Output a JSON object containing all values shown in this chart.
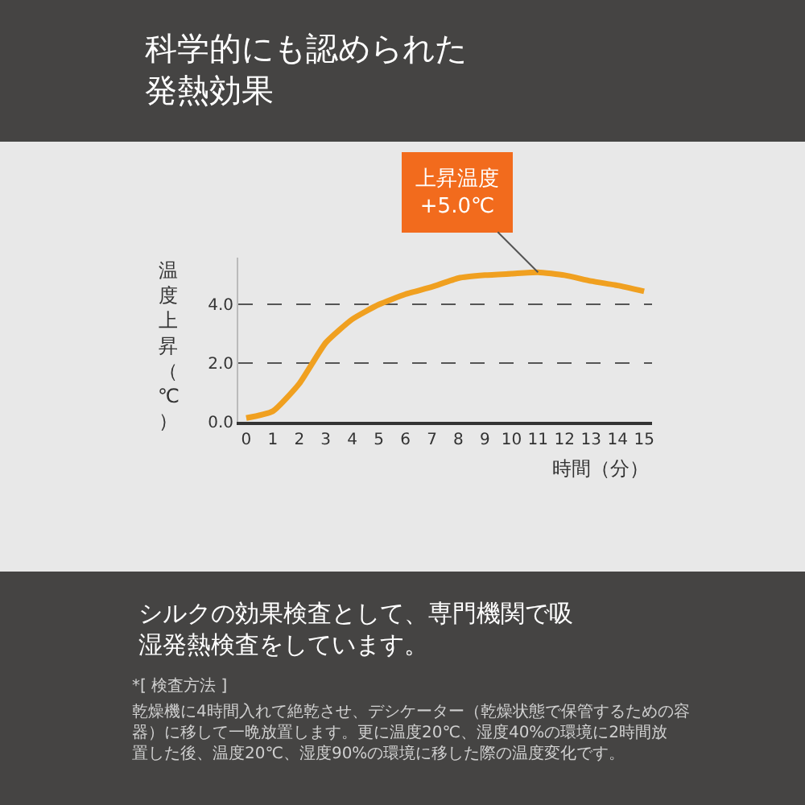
{
  "chart_data": {
    "type": "line",
    "title": "科学的にも認められた発熱効果",
    "xlabel": "時間（分）",
    "ylabel": "温度上昇（℃）",
    "x": [
      0,
      1,
      2,
      3,
      4,
      5,
      6,
      7,
      8,
      9,
      10,
      11,
      12,
      13,
      14,
      15
    ],
    "series": [
      {
        "color": "#f0a020",
        "values": [
          0.13,
          0.36,
          1.3,
          2.7,
          3.5,
          4.0,
          4.35,
          4.6,
          4.9,
          5.0,
          5.05,
          5.1,
          5.0,
          4.8,
          4.65,
          4.45
        ]
      }
    ],
    "xlim": [
      -0.3,
      15.3
    ],
    "xticks": [
      0,
      1,
      2,
      3,
      4,
      5,
      6,
      7,
      8,
      9,
      10,
      11,
      12,
      13,
      14,
      15
    ],
    "ylim": [
      0,
      5.6
    ],
    "yticks": [
      {
        "value": 0,
        "label": "0.0"
      },
      {
        "value": 2,
        "label": "2.0"
      },
      {
        "value": 4,
        "label": "4.0"
      }
    ],
    "grid": "y",
    "marker": "none",
    "line_style": "solid",
    "annotations": [
      {
        "text": "上昇温度\n+5.0℃",
        "x": 11,
        "y": 5.1
      },
      "シルクの効果検査として、専門機関で吸湿発熱検査をしています。",
      "*[ 検査方法 ]",
      "乾燥機に4時間入れて絶乾させ、デシケーター（乾燥状態で保管するための容器）に移して一晩放置します。更に温度20℃、湿度40%の環境に2時間放置した後、温度20℃、湿度90%の環境に移した際の温度変化です。"
    ]
  }
}
